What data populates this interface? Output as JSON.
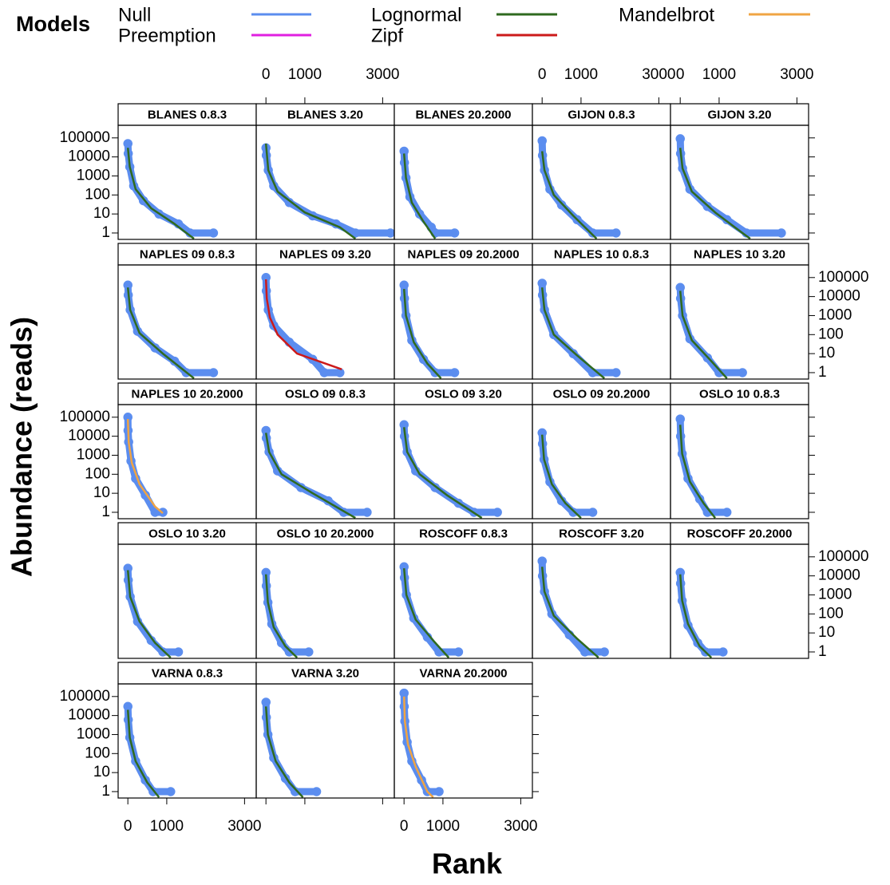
{
  "chart_data": {
    "type": "lattice",
    "legend_title": "Models",
    "models": [
      {
        "name": "Null",
        "color": "#5b8def"
      },
      {
        "name": "Preemption",
        "color": "#e020e0"
      },
      {
        "name": "Lognormal",
        "color": "#2f6a1f"
      },
      {
        "name": "Zipf",
        "color": "#cc1a1a"
      },
      {
        "name": "Mandelbrot",
        "color": "#f0a443"
      }
    ],
    "xlabel": "Rank",
    "ylabel": "Abundance (reads)",
    "xlim": [
      -250,
      3300
    ],
    "xticks": [
      0,
      1000,
      3000
    ],
    "ylim": [
      0.46,
      460000
    ],
    "yticks": [
      1,
      10,
      100,
      1000,
      10000,
      100000
    ],
    "log_y": true,
    "panels": [
      {
        "title": "BLANES 0.8.3",
        "points": {
          "x": [
            1,
            10,
            50,
            150,
            400,
            800,
            1300,
            1600,
            2200
          ],
          "values": [
            50000,
            15000,
            3000,
            300,
            50,
            10,
            3,
            1,
            1
          ]
        },
        "fit": {
          "model": "Lognormal",
          "x": [
            1,
            50,
            200,
            600,
            1200,
            1700
          ],
          "values": [
            30000,
            3000,
            200,
            20,
            3,
            0.5
          ]
        }
      },
      {
        "title": "BLANES 3.20",
        "points": {
          "x": [
            1,
            10,
            60,
            200,
            600,
            1200,
            1800,
            2300,
            3200
          ],
          "values": [
            30000,
            12000,
            2000,
            300,
            40,
            8,
            3,
            1,
            1
          ]
        },
        "fit": {
          "model": "Lognormal",
          "x": [
            1,
            60,
            300,
            1000,
            1900,
            2300
          ],
          "values": [
            50000,
            2000,
            150,
            12,
            2,
            0.5
          ]
        }
      },
      {
        "title": "BLANES 20.2000",
        "points": {
          "x": [
            1,
            10,
            50,
            150,
            400,
            700,
            800,
            1300
          ],
          "values": [
            20000,
            5000,
            800,
            80,
            10,
            2,
            1,
            1
          ]
        },
        "fit": {
          "model": "Lognormal",
          "x": [
            1,
            50,
            200,
            500,
            800
          ],
          "values": [
            15000,
            800,
            40,
            4,
            0.5
          ]
        }
      },
      {
        "title": "GIJON 0.8.3",
        "points": {
          "x": [
            1,
            10,
            60,
            200,
            500,
            900,
            1300,
            1900
          ],
          "values": [
            70000,
            12000,
            2000,
            200,
            30,
            5,
            1,
            1
          ]
        },
        "fit": {
          "model": "Lognormal",
          "x": [
            1,
            60,
            300,
            800,
            1400
          ],
          "values": [
            20000,
            2000,
            100,
            8,
            0.5
          ]
        }
      },
      {
        "title": "GIJON 3.20",
        "points": {
          "x": [
            1,
            10,
            60,
            250,
            700,
            1200,
            1700,
            2600
          ],
          "values": [
            90000,
            15000,
            2500,
            200,
            25,
            5,
            1,
            1
          ]
        },
        "fit": {
          "model": "Lognormal",
          "x": [
            1,
            60,
            300,
            900,
            1600,
            1800
          ],
          "values": [
            30000,
            2500,
            150,
            12,
            1,
            0.5
          ]
        }
      },
      {
        "title": "NAPLES 09 0.8.3",
        "points": {
          "x": [
            1,
            10,
            60,
            250,
            700,
            1200,
            1500,
            2200
          ],
          "values": [
            40000,
            12000,
            2000,
            150,
            20,
            4,
            1,
            1
          ]
        },
        "fit": {
          "model": "Lognormal",
          "x": [
            1,
            60,
            300,
            900,
            1700
          ],
          "values": [
            30000,
            2000,
            120,
            10,
            0.5
          ]
        }
      },
      {
        "title": "NAPLES 09 3.20",
        "points": {
          "x": [
            1,
            10,
            60,
            200,
            600,
            1200,
            1500,
            1900
          ],
          "values": [
            100000,
            20000,
            2000,
            300,
            40,
            5,
            1,
            1
          ]
        },
        "fit": {
          "model": "Zipf",
          "x": [
            1,
            20,
            100,
            300,
            800,
            1950
          ],
          "values": [
            80000,
            8000,
            800,
            100,
            10,
            1.5
          ]
        }
      },
      {
        "title": "NAPLES 09 20.2000",
        "points": {
          "x": [
            1,
            10,
            50,
            200,
            500,
            800,
            1300
          ],
          "values": [
            40000,
            8000,
            1000,
            50,
            5,
            1,
            1
          ]
        },
        "fit": {
          "model": "Lognormal",
          "x": [
            1,
            50,
            250,
            600,
            950
          ],
          "values": [
            25000,
            1000,
            40,
            3,
            0.5
          ]
        }
      },
      {
        "title": "NAPLES 10 0.8.3",
        "points": {
          "x": [
            1,
            10,
            60,
            300,
            800,
            1300,
            1900
          ],
          "values": [
            50000,
            12000,
            2000,
            100,
            10,
            1,
            1
          ]
        },
        "fit": {
          "model": "Lognormal",
          "x": [
            1,
            60,
            300,
            900,
            1600
          ],
          "values": [
            30000,
            2000,
            100,
            8,
            0.5
          ]
        }
      },
      {
        "title": "NAPLES 10 3.20",
        "points": {
          "x": [
            1,
            10,
            60,
            250,
            700,
            1000,
            1600
          ],
          "values": [
            30000,
            8000,
            1000,
            60,
            6,
            1,
            1
          ]
        },
        "fit": {
          "model": "Lognormal",
          "x": [
            1,
            60,
            300,
            800,
            1200
          ],
          "values": [
            20000,
            1000,
            50,
            4,
            0.5
          ]
        }
      },
      {
        "title": "NAPLES 10 20.2000",
        "points": {
          "x": [
            1,
            5,
            20,
            80,
            200,
            450,
            700,
            900
          ],
          "values": [
            100000,
            20000,
            5000,
            500,
            60,
            8,
            1,
            1
          ]
        },
        "fit": {
          "model": "Mandelbrot",
          "x": [
            1,
            20,
            100,
            300,
            700,
            900
          ],
          "values": [
            80000,
            5000,
            400,
            30,
            2,
            0.9
          ]
        }
      },
      {
        "title": "OSLO 09 0.8.3",
        "points": {
          "x": [
            1,
            10,
            80,
            300,
            900,
            1600,
            2000,
            2600
          ],
          "values": [
            20000,
            8000,
            1500,
            150,
            20,
            4,
            1,
            1
          ]
        },
        "fit": {
          "model": "Lognormal",
          "x": [
            1,
            80,
            400,
            1200,
            2300
          ],
          "values": [
            15000,
            1500,
            100,
            10,
            0.5
          ]
        }
      },
      {
        "title": "OSLO 09 3.20",
        "points": {
          "x": [
            1,
            10,
            80,
            300,
            800,
            1400,
            1800,
            2400
          ],
          "values": [
            40000,
            10000,
            1500,
            150,
            20,
            3,
            1,
            1
          ]
        },
        "fit": {
          "model": "Lognormal",
          "x": [
            1,
            80,
            400,
            1100,
            2000
          ],
          "values": [
            30000,
            1500,
            100,
            8,
            0.5
          ]
        }
      },
      {
        "title": "OSLO 09 20.2000",
        "points": {
          "x": [
            1,
            10,
            50,
            200,
            500,
            800,
            1300
          ],
          "values": [
            15000,
            4000,
            600,
            40,
            4,
            1,
            1
          ]
        },
        "fit": {
          "model": "Lognormal",
          "x": [
            1,
            50,
            250,
            600,
            1000
          ],
          "values": [
            12000,
            600,
            30,
            3,
            0.5
          ]
        }
      },
      {
        "title": "OSLO 10 0.8.3",
        "points": {
          "x": [
            1,
            10,
            50,
            200,
            500,
            700,
            1200
          ],
          "values": [
            80000,
            10000,
            1200,
            60,
            5,
            1,
            1
          ]
        },
        "fit": {
          "model": "Lognormal",
          "x": [
            1,
            50,
            250,
            600,
            900
          ],
          "values": [
            40000,
            1200,
            40,
            3,
            0.5
          ]
        }
      },
      {
        "title": "OSLO 10 3.20",
        "points": {
          "x": [
            1,
            10,
            60,
            250,
            600,
            900,
            1300
          ],
          "values": [
            25000,
            6000,
            800,
            40,
            4,
            1,
            1
          ]
        },
        "fit": {
          "model": "Lognormal",
          "x": [
            1,
            60,
            300,
            700,
            1100
          ],
          "values": [
            20000,
            800,
            40,
            3,
            0.5
          ]
        }
      },
      {
        "title": "OSLO 10 20.2000",
        "points": {
          "x": [
            1,
            10,
            50,
            150,
            400,
            600,
            1100
          ],
          "values": [
            15000,
            3000,
            400,
            30,
            3,
            1,
            1
          ]
        },
        "fit": {
          "model": "Lognormal",
          "x": [
            1,
            50,
            200,
            500,
            800
          ],
          "values": [
            12000,
            400,
            20,
            2,
            0.5
          ]
        }
      },
      {
        "title": "ROSCOFF 0.8.3",
        "points": {
          "x": [
            1,
            10,
            60,
            250,
            600,
            900,
            1400
          ],
          "values": [
            30000,
            8000,
            1000,
            60,
            6,
            1,
            1
          ]
        },
        "fit": {
          "model": "Lognormal",
          "x": [
            1,
            60,
            300,
            750,
            1150
          ],
          "values": [
            25000,
            1000,
            50,
            4,
            0.5
          ]
        }
      },
      {
        "title": "ROSCOFF 3.20",
        "points": {
          "x": [
            1,
            10,
            60,
            250,
            700,
            1100,
            1600
          ],
          "values": [
            60000,
            10000,
            1500,
            100,
            8,
            1,
            1
          ]
        },
        "fit": {
          "model": "Lognormal",
          "x": [
            1,
            60,
            300,
            900,
            1450
          ],
          "values": [
            30000,
            1500,
            80,
            5,
            0.5
          ]
        }
      },
      {
        "title": "ROSCOFF 20.2000",
        "points": {
          "x": [
            1,
            10,
            50,
            200,
            450,
            650,
            1100
          ],
          "values": [
            15000,
            4000,
            500,
            25,
            3,
            1,
            1
          ]
        },
        "fit": {
          "model": "Lognormal",
          "x": [
            1,
            50,
            200,
            500,
            800
          ],
          "values": [
            12000,
            500,
            30,
            2,
            0.5
          ]
        }
      },
      {
        "title": "VARNA 0.8.3",
        "points": {
          "x": [
            1,
            10,
            50,
            200,
            450,
            650,
            1100
          ],
          "values": [
            30000,
            6000,
            700,
            40,
            4,
            1,
            1
          ]
        },
        "fit": {
          "model": "Lognormal",
          "x": [
            1,
            50,
            200,
            500,
            800
          ],
          "values": [
            20000,
            700,
            40,
            3,
            0.5
          ]
        }
      },
      {
        "title": "VARNA 3.20",
        "points": {
          "x": [
            1,
            10,
            50,
            200,
            500,
            750,
            1300
          ],
          "values": [
            50000,
            8000,
            1000,
            60,
            5,
            1,
            1
          ]
        },
        "fit": {
          "model": "Lognormal",
          "x": [
            1,
            50,
            250,
            600,
            950
          ],
          "values": [
            30000,
            1000,
            40,
            3,
            0.5
          ]
        }
      },
      {
        "title": "VARNA 20.2000",
        "points": {
          "x": [
            1,
            5,
            20,
            80,
            200,
            450,
            600,
            900
          ],
          "values": [
            150000,
            30000,
            5000,
            400,
            40,
            4,
            1,
            1
          ]
        },
        "fit": {
          "model": "Mandelbrot",
          "x": [
            1,
            20,
            100,
            300,
            600,
            750
          ],
          "values": [
            100000,
            5000,
            300,
            20,
            1,
            0.5
          ]
        }
      }
    ]
  }
}
